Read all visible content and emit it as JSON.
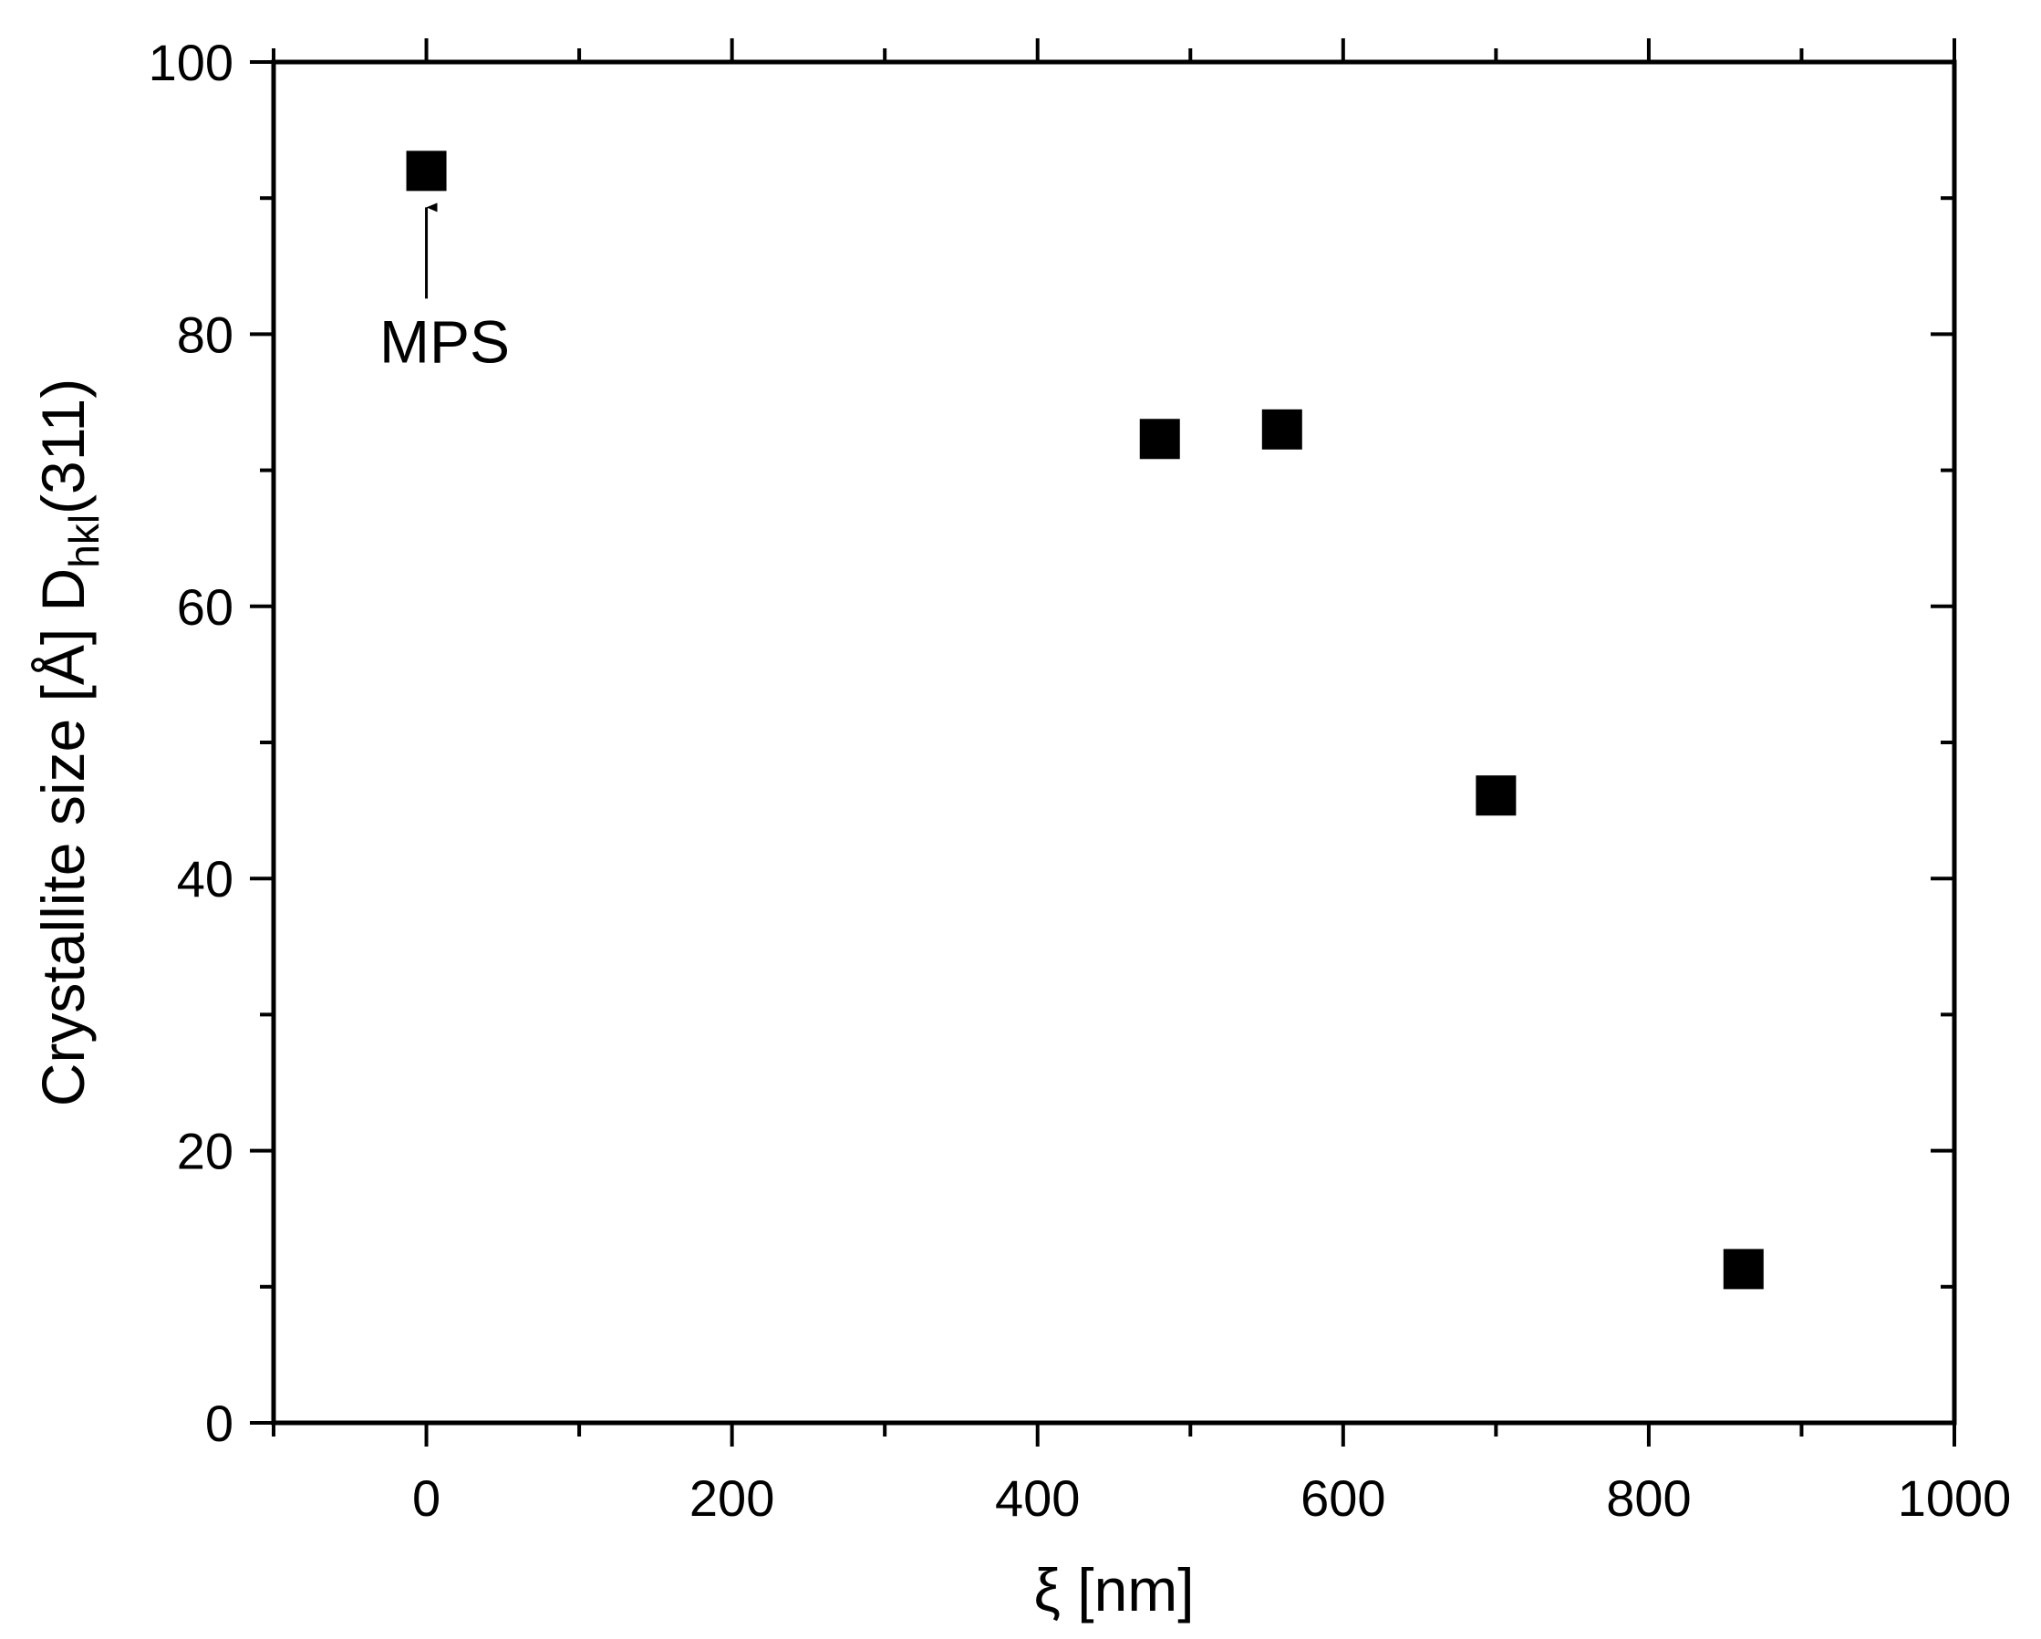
{
  "chart_data": {
    "type": "scatter",
    "x": [
      0,
      480,
      560,
      700,
      862
    ],
    "y": [
      92,
      72.3,
      73,
      46.1,
      11.3
    ],
    "xlabel": "ξ [nm]",
    "ylabel": {
      "prefix": "Crystallite size [Å] D",
      "subscript": "hkl",
      "suffix": "(311)"
    },
    "xlim": [
      -100,
      1000
    ],
    "ylim": [
      0,
      100
    ],
    "xticks": [
      0,
      200,
      400,
      600,
      800,
      1000
    ],
    "xticks_minor": [
      -100,
      100,
      300,
      500,
      700,
      900
    ],
    "yticks": [
      0,
      20,
      40,
      60,
      80,
      100
    ],
    "yticks_minor": [
      10,
      30,
      50,
      70,
      90
    ],
    "marker": "square",
    "marker_color": "#000000",
    "grid": false,
    "annotations": [
      {
        "text": "MPS",
        "point_index": 0,
        "arrow": true
      }
    ]
  }
}
